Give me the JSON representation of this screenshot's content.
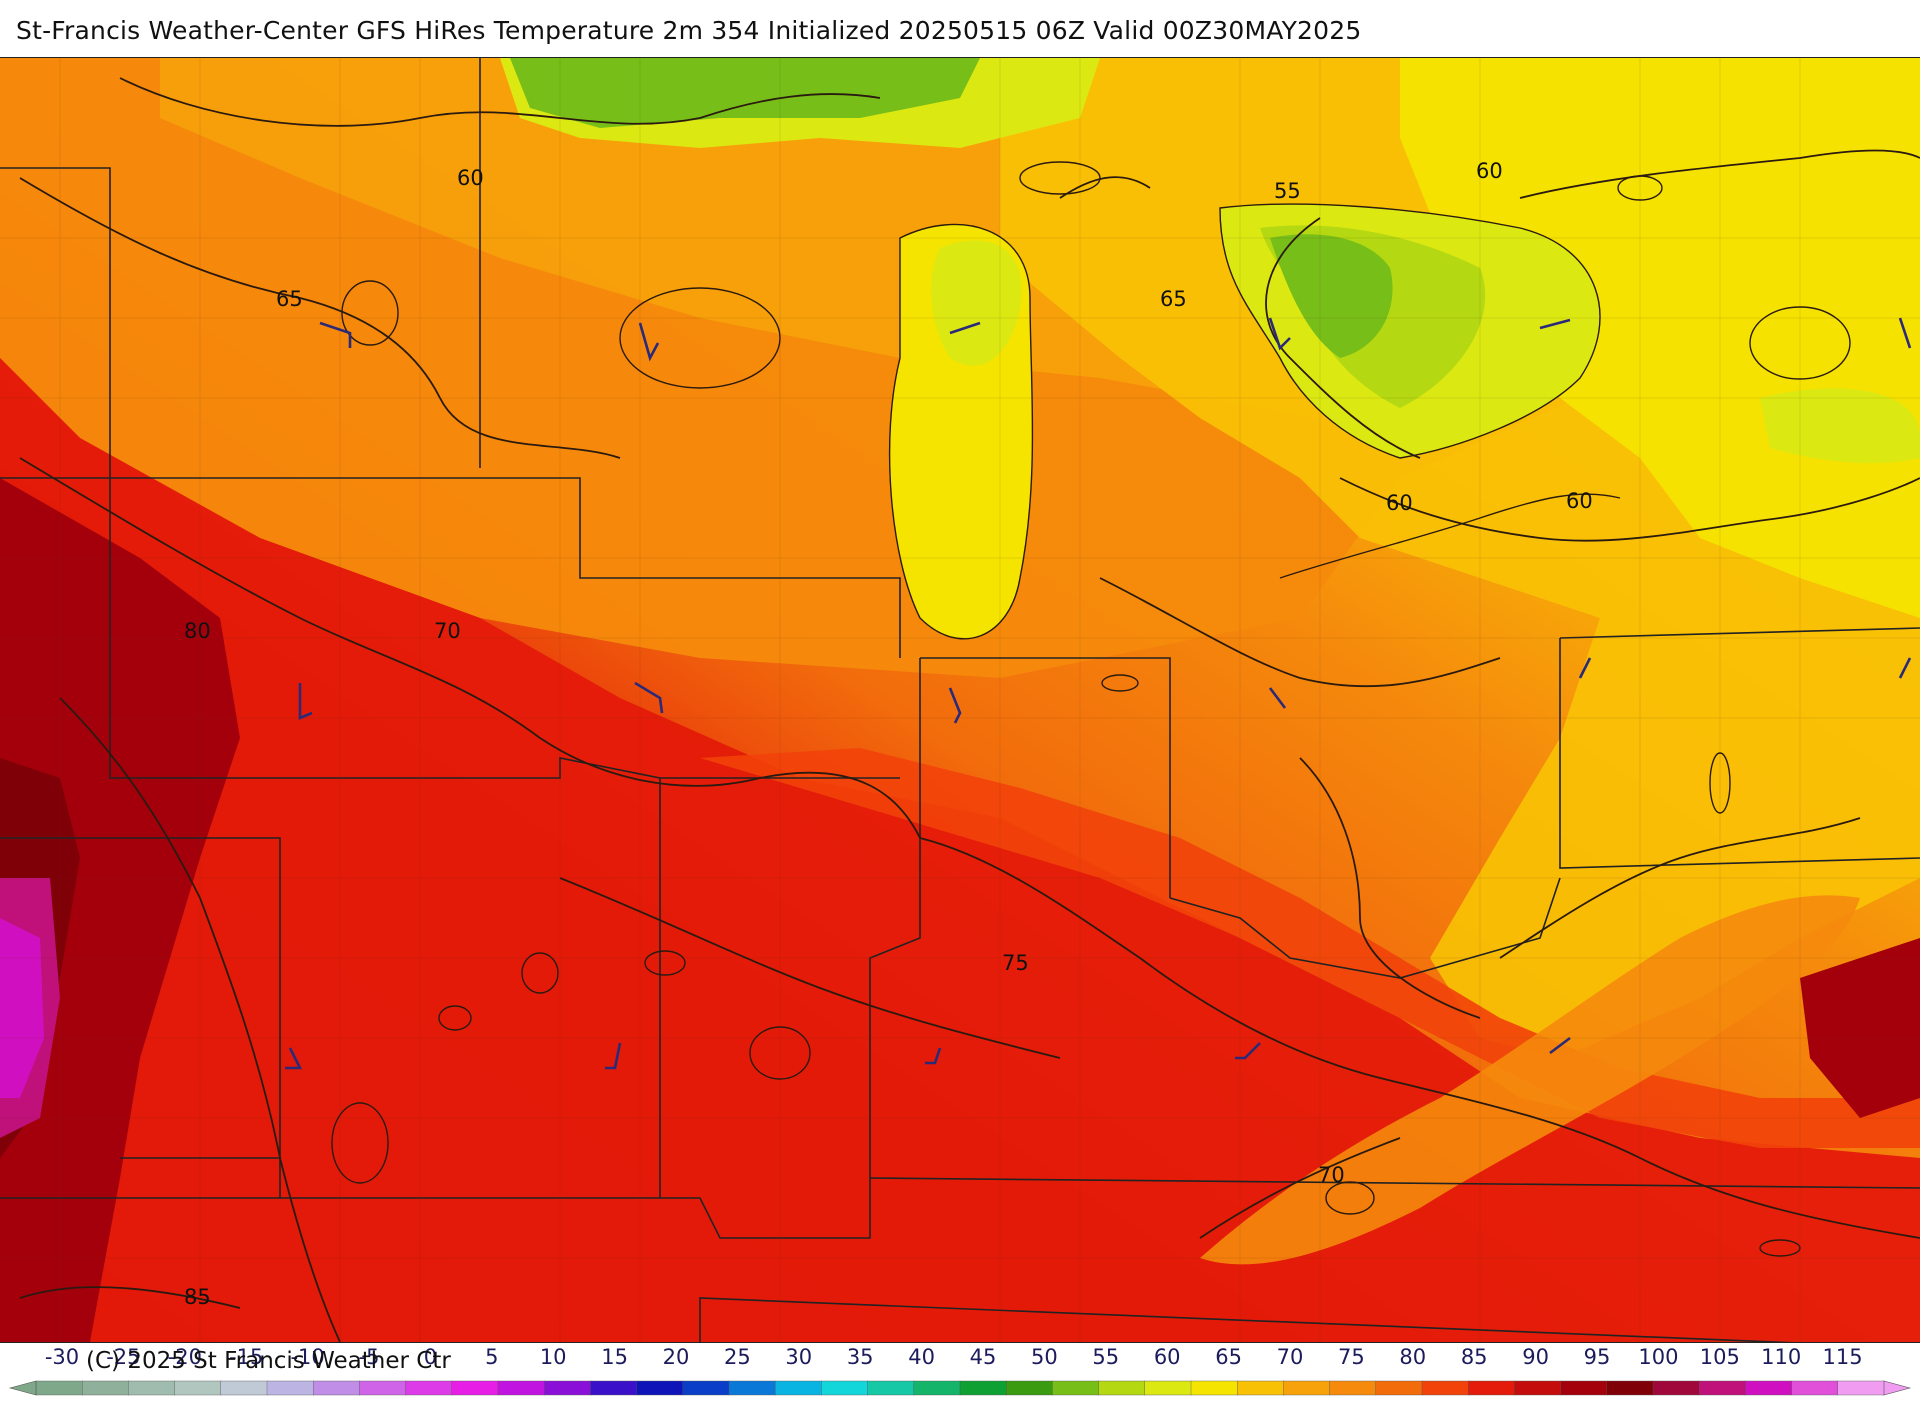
{
  "header": {
    "title": "St-Francis Weather-Center GFS HiRes Temperature 2m  354 Initialized 20250515 06Z Valid 00Z30MAY2025"
  },
  "footer": {
    "copyright": "(C) 2025 St Francis Weather Ctr"
  },
  "map": {
    "contour_labels": [
      "60",
      "65",
      "55",
      "65",
      "60",
      "60",
      "60",
      "80",
      "70",
      "75",
      "70",
      "85"
    ],
    "colors": {
      "deep_red": "#a4000c",
      "red": "#e41a0a",
      "red_orange": "#f2420a",
      "orange": "#f58a0c",
      "light_orange": "#f7a20a",
      "yellow_orange": "#f9c105",
      "yellow": "#f5e400",
      "lime": "#d6ee14",
      "green": "#78be18",
      "magenta": "#d010c0",
      "contour_line": "#2a1a10",
      "border_line": "#222222",
      "wind_barb": "#2a2a78"
    }
  },
  "legend": {
    "tick_labels": [
      "-30",
      "-25",
      "-20",
      "-15",
      "-10",
      "-5",
      "0",
      "5",
      "10",
      "15",
      "20",
      "25",
      "30",
      "35",
      "40",
      "45",
      "50",
      "55",
      "60",
      "65",
      "70",
      "75",
      "80",
      "85",
      "90",
      "95",
      "100",
      "105",
      "110",
      "115"
    ],
    "colors": [
      "#7fa88a",
      "#8fb19c",
      "#a0bcae",
      "#b2c6c0",
      "#c0c9d6",
      "#bcb5e4",
      "#c08ee6",
      "#cf64e8",
      "#dd3ae8",
      "#e61ee6",
      "#c214e0",
      "#8a10d8",
      "#3a10c8",
      "#0f14b8",
      "#0a3ec8",
      "#0a78d6",
      "#0ab4e2",
      "#12d6da",
      "#16c8a6",
      "#14b46a",
      "#0ea032",
      "#3a9a10",
      "#78be18",
      "#b4d812",
      "#dce812",
      "#f5e400",
      "#f9c105",
      "#f7a20a",
      "#f58a0c",
      "#f26c0c",
      "#f2420a",
      "#e41a0a",
      "#c40c0c",
      "#a4000c",
      "#800008",
      "#a0083c",
      "#c0107a",
      "#d010c0",
      "#e050d8",
      "#f09cf0"
    ]
  }
}
